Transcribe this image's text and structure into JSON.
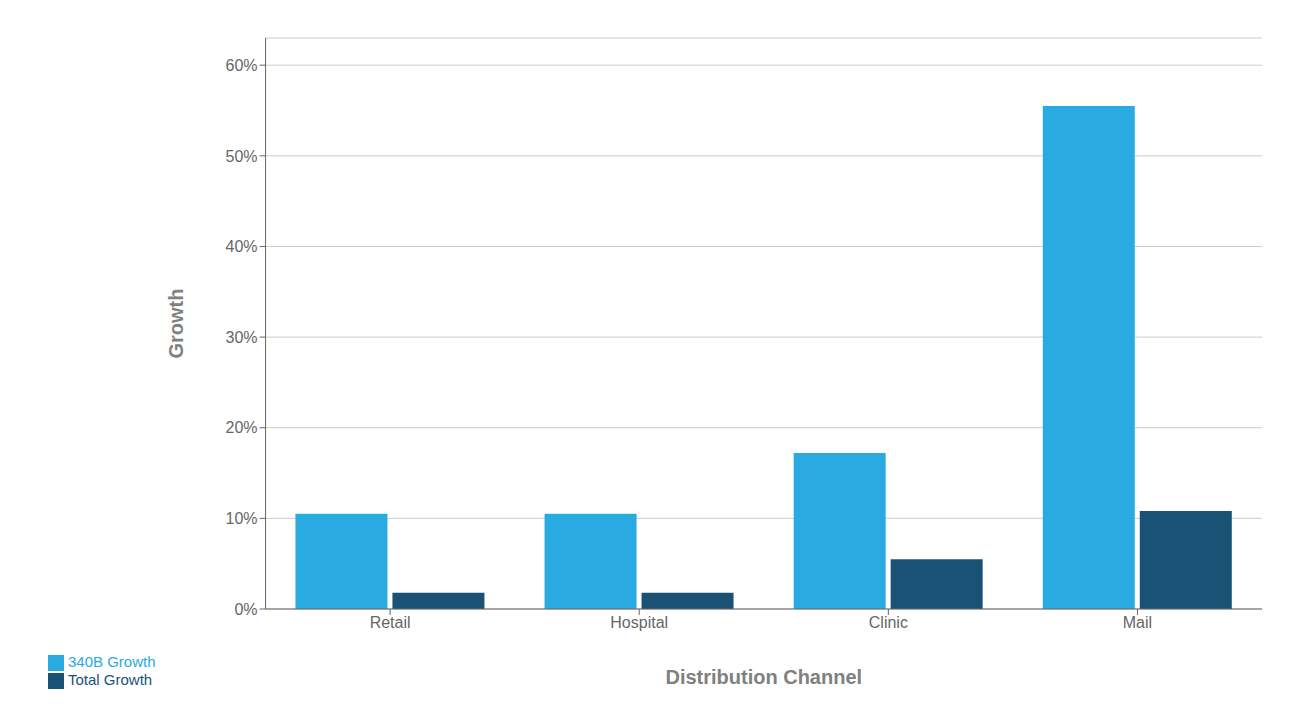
{
  "chart_data": {
    "type": "bar",
    "categories": [
      "Retail",
      "Hospital",
      "Clinic",
      "Mail"
    ],
    "series": [
      {
        "name": "340B Growth",
        "color": "#29ABE2",
        "values": [
          0.105,
          0.105,
          0.172,
          0.555
        ]
      },
      {
        "name": "Total Growth",
        "color": "#1A5276",
        "values": [
          0.018,
          0.018,
          0.055,
          0.108
        ]
      }
    ],
    "y_label": "Growth",
    "x_label": "Distribution Channel",
    "ylim": [
      0,
      0.63
    ],
    "yticks": [
      {
        "value": 0.0,
        "label": "0%"
      },
      {
        "value": 0.1,
        "label": "10%"
      },
      {
        "value": 0.2,
        "label": "20%"
      },
      {
        "value": 0.3,
        "label": "30%"
      },
      {
        "value": 0.4,
        "label": "40%"
      },
      {
        "value": 0.5,
        "label": "50%"
      },
      {
        "value": 0.6,
        "label": "60%"
      }
    ],
    "grid": true,
    "legend": "lower left"
  }
}
